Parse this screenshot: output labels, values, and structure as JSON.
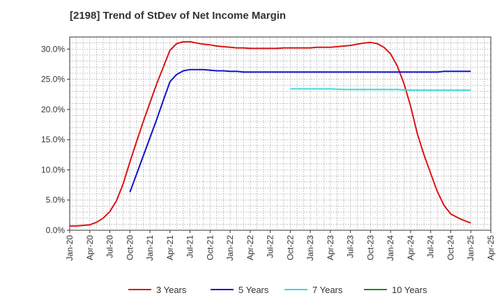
{
  "chart_data": {
    "type": "line",
    "title": "[2198]  Trend of StDev of Net Income Margin",
    "xlabel": "",
    "ylabel": "",
    "x_ticks": [
      "Jan-20",
      "Apr-20",
      "Jul-20",
      "Oct-20",
      "Jan-21",
      "Apr-21",
      "Jul-21",
      "Oct-21",
      "Jan-22",
      "Apr-22",
      "Jul-22",
      "Oct-22",
      "Jan-23",
      "Apr-23",
      "Jul-23",
      "Oct-23",
      "Jan-24",
      "Apr-24",
      "Jul-24",
      "Oct-24",
      "Jan-25",
      "Apr-25"
    ],
    "y_ticks": [
      "0.0%",
      "5.0%",
      "10.0%",
      "15.0%",
      "20.0%",
      "25.0%",
      "30.0%"
    ],
    "ylim": [
      0,
      32
    ],
    "grid": true,
    "legend_position": "bottom",
    "series": [
      {
        "name": "3 Years",
        "color": "#dd1111",
        "x": [
          "2020-01",
          "2020-02",
          "2020-03",
          "2020-04",
          "2020-05",
          "2020-06",
          "2020-07",
          "2020-08",
          "2020-09",
          "2020-10",
          "2020-11",
          "2020-12",
          "2021-01",
          "2021-02",
          "2021-03",
          "2021-04",
          "2021-05",
          "2021-06",
          "2021-07",
          "2021-08",
          "2021-09",
          "2021-10",
          "2021-11",
          "2021-12",
          "2022-01",
          "2022-02",
          "2022-03",
          "2022-04",
          "2022-05",
          "2022-06",
          "2022-07",
          "2022-08",
          "2022-09",
          "2022-10",
          "2022-11",
          "2022-12",
          "2023-01",
          "2023-02",
          "2023-03",
          "2023-04",
          "2023-05",
          "2023-06",
          "2023-07",
          "2023-08",
          "2023-09",
          "2023-10",
          "2023-11",
          "2023-12",
          "2024-01",
          "2024-02",
          "2024-03",
          "2024-04",
          "2024-05",
          "2024-06",
          "2024-07",
          "2024-08",
          "2024-09",
          "2024-10",
          "2024-11",
          "2024-12",
          "2025-01"
        ],
        "values": [
          0.7,
          0.7,
          0.8,
          0.9,
          1.3,
          2.0,
          3.1,
          4.9,
          7.7,
          11.3,
          14.7,
          18.0,
          21.1,
          24.2,
          27.0,
          29.8,
          30.9,
          31.2,
          31.2,
          31.0,
          30.8,
          30.7,
          30.5,
          30.4,
          30.3,
          30.2,
          30.2,
          30.1,
          30.1,
          30.1,
          30.1,
          30.1,
          30.2,
          30.2,
          30.2,
          30.2,
          30.2,
          30.3,
          30.3,
          30.3,
          30.4,
          30.5,
          30.6,
          30.8,
          31.0,
          31.1,
          30.9,
          30.3,
          29.2,
          27.2,
          24.3,
          20.5,
          16.0,
          12.5,
          9.4,
          6.4,
          4.1,
          2.7,
          2.1,
          1.6,
          1.2
        ]
      },
      {
        "name": "5 Years",
        "color": "#1111cc",
        "x": [
          "2020-10",
          "2020-11",
          "2020-12",
          "2021-01",
          "2021-02",
          "2021-03",
          "2021-04",
          "2021-05",
          "2021-06",
          "2021-07",
          "2021-08",
          "2021-09",
          "2021-10",
          "2021-11",
          "2021-12",
          "2022-01",
          "2022-02",
          "2022-03",
          "2022-04",
          "2022-05",
          "2022-06",
          "2022-07",
          "2022-08",
          "2022-09",
          "2022-10",
          "2022-11",
          "2022-12",
          "2023-01",
          "2023-02",
          "2023-03",
          "2023-04",
          "2023-05",
          "2023-06",
          "2023-07",
          "2023-08",
          "2023-09",
          "2023-10",
          "2023-11",
          "2023-12",
          "2024-01",
          "2024-02",
          "2024-03",
          "2024-04",
          "2024-05",
          "2024-06",
          "2024-07",
          "2024-08",
          "2024-09",
          "2024-10",
          "2024-11",
          "2024-12",
          "2025-01"
        ],
        "values": [
          6.3,
          9.3,
          12.3,
          15.3,
          18.3,
          21.5,
          24.6,
          25.8,
          26.4,
          26.6,
          26.6,
          26.6,
          26.5,
          26.4,
          26.4,
          26.3,
          26.3,
          26.2,
          26.2,
          26.2,
          26.2,
          26.2,
          26.2,
          26.2,
          26.2,
          26.2,
          26.2,
          26.2,
          26.2,
          26.2,
          26.2,
          26.2,
          26.2,
          26.2,
          26.2,
          26.2,
          26.2,
          26.2,
          26.2,
          26.2,
          26.2,
          26.2,
          26.2,
          26.2,
          26.2,
          26.2,
          26.2,
          26.3,
          26.3,
          26.3,
          26.3,
          26.3
        ]
      },
      {
        "name": "7 Years",
        "color": "#33dddd",
        "x": [
          "2022-10",
          "2022-12",
          "2023-02",
          "2023-04",
          "2023-06",
          "2023-08",
          "2023-10",
          "2023-12",
          "2024-02",
          "2024-04",
          "2024-06",
          "2024-08",
          "2024-10",
          "2024-12",
          "2025-01"
        ],
        "values": [
          23.4,
          23.4,
          23.4,
          23.4,
          23.3,
          23.3,
          23.3,
          23.3,
          23.3,
          23.2,
          23.2,
          23.2,
          23.2,
          23.2,
          23.2
        ]
      },
      {
        "name": "10 Years",
        "color": "#228822",
        "x": [],
        "values": []
      }
    ]
  }
}
